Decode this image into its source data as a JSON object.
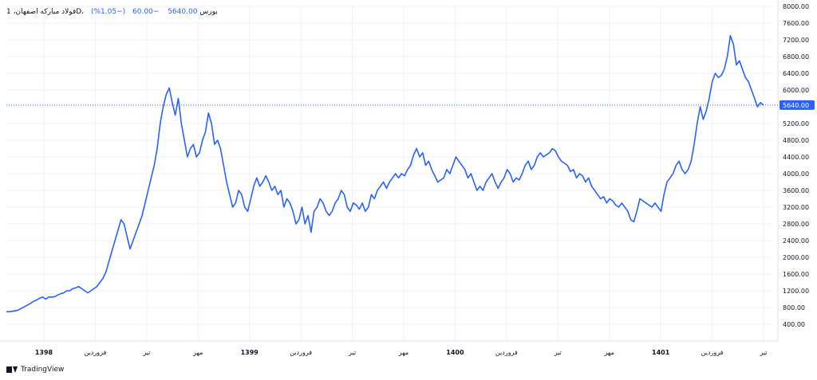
{
  "header": {
    "symbol": "فولاد مباركه اصفهان، 1D، بورس",
    "last": "5640.00",
    "change": "−60.00",
    "change_pct": "(−1.05%)"
  },
  "watermark": {
    "label": "TradingView"
  },
  "colors": {
    "line": "#2962ff",
    "price_line": "#2962ff",
    "price_label_bg": "#2962ff",
    "grid": "#f0f3fa",
    "text": "#131722"
  },
  "chart_data": {
    "type": "line",
    "title": "فولاد مباركه اصفهان، 1D، بورس",
    "xlabel": "",
    "ylabel": "",
    "ylim": [
      0,
      8000
    ],
    "y_ticks": [
      "400.00",
      "800.00",
      "1200.00",
      "1600.00",
      "2000.00",
      "2400.00",
      "2800.00",
      "3200.00",
      "3600.00",
      "4000.00",
      "4400.00",
      "4800.00",
      "5200.00",
      "5600.00",
      "6000.00",
      "6400.00",
      "6800.00",
      "7200.00",
      "7600.00",
      "8000.00"
    ],
    "x_ticks": [
      {
        "label": "1398",
        "bold": true
      },
      {
        "label": "فروردین",
        "bold": false
      },
      {
        "label": "تیر",
        "bold": false
      },
      {
        "label": "مهر",
        "bold": false
      },
      {
        "label": "1399",
        "bold": true
      },
      {
        "label": "فروردین",
        "bold": false
      },
      {
        "label": "تیر",
        "bold": false
      },
      {
        "label": "مهر",
        "bold": false
      },
      {
        "label": "1400",
        "bold": true
      },
      {
        "label": "فروردین",
        "bold": false
      },
      {
        "label": "تیر",
        "bold": false
      },
      {
        "label": "مهر",
        "bold": false
      },
      {
        "label": "1401",
        "bold": true
      },
      {
        "label": "فروردین",
        "bold": false
      },
      {
        "label": "تیر",
        "bold": false
      }
    ],
    "last_price": 5640,
    "last_price_label": "5640.00",
    "grid": true,
    "series": [
      {
        "values": [
          700,
          700,
          710,
          720,
          740,
          780,
          820,
          860,
          900,
          950,
          980,
          1020,
          1050,
          1000,
          1050,
          1050,
          1060,
          1100,
          1130,
          1150,
          1200,
          1200,
          1250,
          1270,
          1300,
          1250,
          1200,
          1150,
          1200,
          1250,
          1300,
          1400,
          1500,
          1650,
          1900,
          2150,
          2400,
          2650,
          2900,
          2800,
          2500,
          2200,
          2400,
          2600,
          2800,
          3000,
          3300,
          3600,
          3900,
          4200,
          4600,
          5200,
          5600,
          5900,
          6050,
          5700,
          5400,
          5800,
          5200,
          4800,
          4400,
          4600,
          4700,
          4400,
          4500,
          4800,
          5000,
          5450,
          5200,
          4700,
          4800,
          4600,
          4200,
          3800,
          3500,
          3200,
          3300,
          3600,
          3500,
          3200,
          3100,
          3400,
          3700,
          3900,
          3700,
          3800,
          3950,
          3800,
          3600,
          3700,
          3500,
          3600,
          3200,
          3400,
          3300,
          3100,
          2800,
          2900,
          3200,
          2800,
          3000,
          2600,
          3100,
          3200,
          3400,
          3300,
          3100,
          3000,
          3100,
          3300,
          3400,
          3600,
          3500,
          3200,
          3100,
          3300,
          3250,
          3150,
          3300,
          3100,
          3200,
          3500,
          3400,
          3600,
          3700,
          3800,
          3650,
          3800,
          3900,
          4000,
          3900,
          4000,
          3950,
          4100,
          4200,
          4450,
          4600,
          4400,
          4500,
          4200,
          4300,
          4100,
          3950,
          3800,
          3850,
          3900,
          4100,
          4000,
          4200,
          4400,
          4300,
          4200,
          4100,
          3900,
          4000,
          3800,
          3600,
          3700,
          3600,
          3800,
          3900,
          4000,
          3800,
          3650,
          3800,
          3900,
          4100,
          4000,
          3800,
          3900,
          3850,
          4000,
          4200,
          4300,
          4100,
          4200,
          4400,
          4500,
          4400,
          4450,
          4500,
          4600,
          4550,
          4400,
          4300,
          4250,
          4200,
          4050,
          4100,
          3900,
          4000,
          3950,
          3800,
          3900,
          3700,
          3600,
          3500,
          3400,
          3450,
          3300,
          3400,
          3350,
          3250,
          3200,
          3300,
          3200,
          3100,
          2900,
          2850,
          3100,
          3400,
          3350,
          3300,
          3250,
          3200,
          3300,
          3200,
          3100,
          3500,
          3800,
          3900,
          4000,
          4200,
          4300,
          4100,
          4000,
          4100,
          4300,
          4700,
          5200,
          5600,
          5300,
          5500,
          5800,
          6200,
          6400,
          6300,
          6350,
          6500,
          6800,
          7300,
          7100,
          6600,
          6700,
          6500,
          6300,
          6200,
          6000,
          5800,
          5600,
          5700,
          5640
        ]
      }
    ]
  }
}
